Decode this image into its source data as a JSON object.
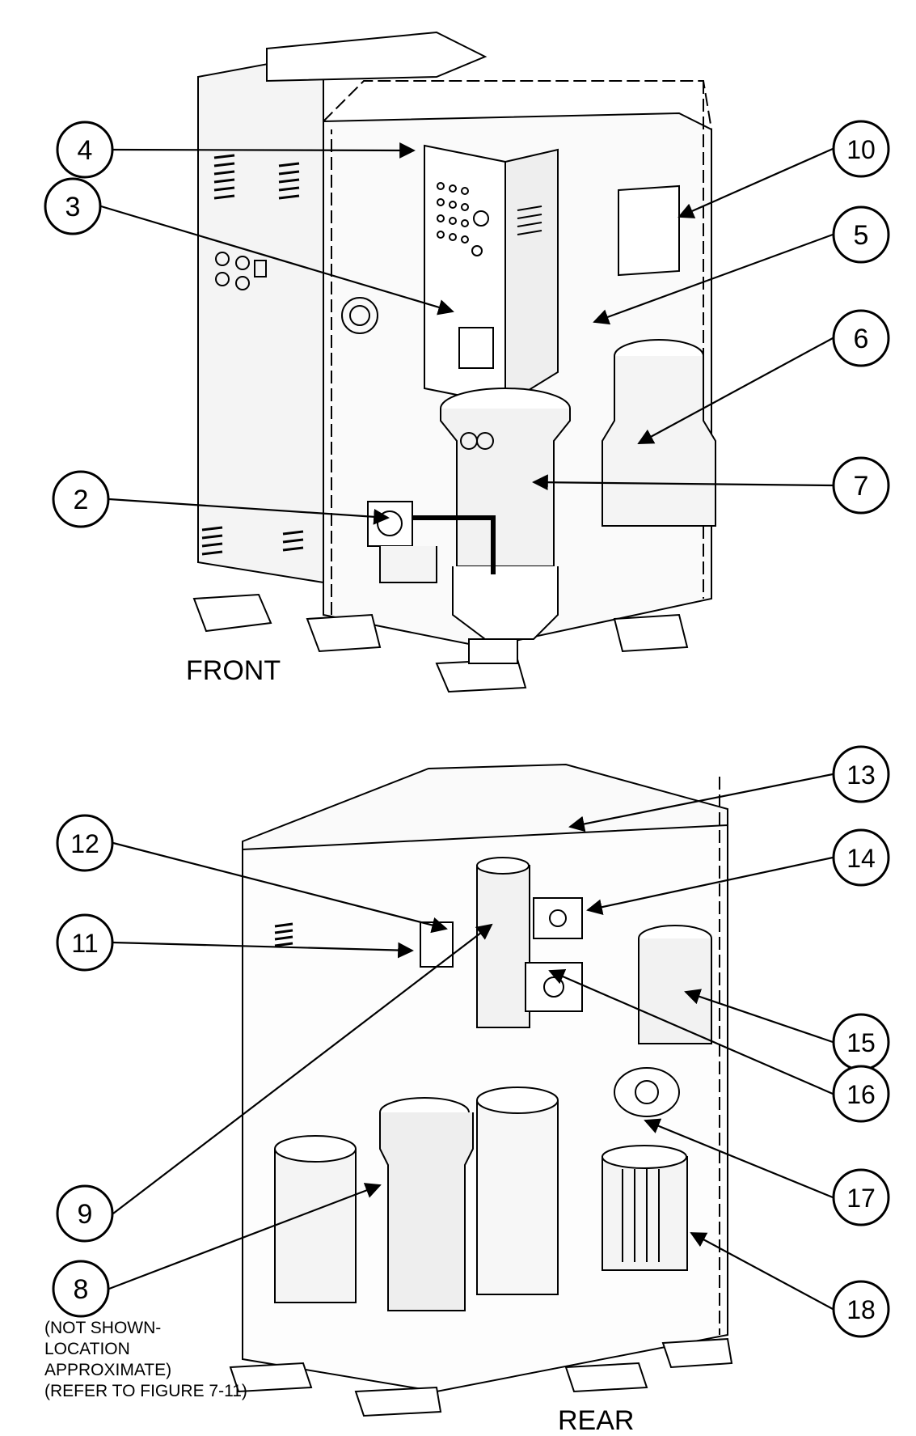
{
  "views": {
    "front": {
      "label": "FRONT"
    },
    "rear": {
      "label": "REAR"
    }
  },
  "callouts": [
    {
      "id": "c4",
      "text": "4"
    },
    {
      "id": "c3",
      "text": "3"
    },
    {
      "id": "c10",
      "text": "10"
    },
    {
      "id": "c5",
      "text": "5"
    },
    {
      "id": "c6",
      "text": "6"
    },
    {
      "id": "c7",
      "text": "7"
    },
    {
      "id": "c2",
      "text": "2"
    },
    {
      "id": "c13",
      "text": "13"
    },
    {
      "id": "c12",
      "text": "12"
    },
    {
      "id": "c14",
      "text": "14"
    },
    {
      "id": "c11",
      "text": "11"
    },
    {
      "id": "c15",
      "text": "15"
    },
    {
      "id": "c16",
      "text": "16"
    },
    {
      "id": "c17",
      "text": "17"
    },
    {
      "id": "c9",
      "text": "9"
    },
    {
      "id": "c8",
      "text": "8"
    },
    {
      "id": "c18",
      "text": "18"
    }
  ],
  "note": {
    "line1": "(NOT SHOWN-",
    "line2": "LOCATION",
    "line3": "APPROXIMATE)",
    "line4": "(REFER TO FIGURE 7-11)"
  },
  "colors": {
    "ink": "#000000",
    "paper": "#ffffff",
    "shade": "#e8e8e8"
  }
}
